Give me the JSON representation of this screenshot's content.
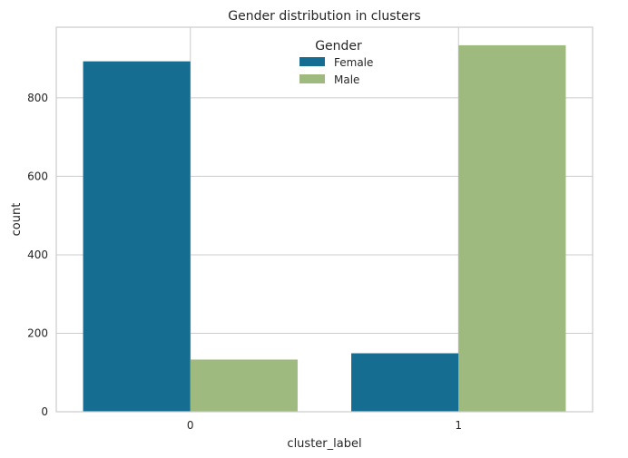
{
  "chart_data": {
    "type": "bar",
    "title": "Gender distribution in clusters",
    "xlabel": "cluster_label",
    "ylabel": "count",
    "categories": [
      "0",
      "1"
    ],
    "series": [
      {
        "name": "Female",
        "values": [
          893,
          149
        ],
        "color": "#156d92"
      },
      {
        "name": "Male",
        "values": [
          133,
          934
        ],
        "color": "#9fba7e"
      }
    ],
    "ylim": [
      0,
      980
    ],
    "yticks": [
      0,
      200,
      400,
      600,
      800
    ],
    "grid": true,
    "legend": {
      "title": "Gender",
      "placement": "top-center"
    }
  }
}
